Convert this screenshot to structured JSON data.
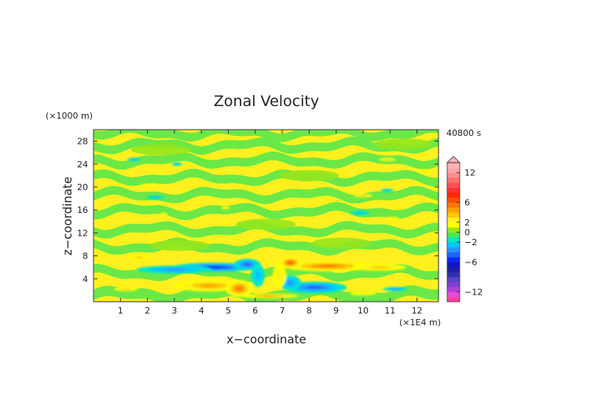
{
  "chart_data": {
    "type": "heatmap",
    "title": "Zonal Velocity",
    "xlabel": "x−coordinate",
    "ylabel": "z−coordinate",
    "x_unit": "(×1E4 m)",
    "y_unit": "(×1000 m)",
    "time_label": "40800 s",
    "xlim": [
      0,
      12.8
    ],
    "ylim": [
      0,
      30
    ],
    "x_ticks": [
      "1",
      "2",
      "3",
      "4",
      "5",
      "6",
      "7",
      "8",
      "9",
      "10",
      "11",
      "12"
    ],
    "y_ticks": [
      "4",
      "8",
      "12",
      "16",
      "20",
      "24",
      "28"
    ],
    "colorbar": {
      "labels": [
        "12",
        "6",
        "2",
        "0",
        "−2",
        "−6",
        "−12"
      ],
      "levels": [
        -14,
        -13,
        -12,
        -11,
        -10,
        -9,
        -8,
        -7,
        -6,
        -5,
        -4,
        -3,
        -2,
        -1,
        0,
        1,
        2,
        3,
        4,
        5,
        6,
        7,
        8,
        9,
        10,
        11,
        12,
        13,
        14
      ],
      "colors": [
        "#ff3fa4",
        "#e64ad9",
        "#b040d8",
        "#8040d0",
        "#6040c8",
        "#3030b0",
        "#2020a0",
        "#1414c8",
        "#0a28f0",
        "#1e64ff",
        "#2896ff",
        "#00c8ff",
        "#00e6c8",
        "#50e650",
        "#96e61e",
        "#ffff00",
        "#fff01e",
        "#ffc800",
        "#ffa000",
        "#ff7800",
        "#ff5000",
        "#ff2800",
        "#ff3232",
        "#ff5050",
        "#ff6e6e",
        "#ff8c8c",
        "#ffa5a5",
        "#ffb4b4"
      ]
    },
    "features": [
      {
        "x": 4.5,
        "z": 6.0,
        "value": -5,
        "sx": 1.6,
        "sz": 0.8
      },
      {
        "x": 3.0,
        "z": 5.6,
        "value": -3,
        "sx": 1.4,
        "sz": 0.7
      },
      {
        "x": 5.7,
        "z": 6.5,
        "value": -4,
        "sx": 0.5,
        "sz": 1.0
      },
      {
        "x": 4.3,
        "z": 2.8,
        "value": 4,
        "sx": 1.3,
        "sz": 1.0
      },
      {
        "x": 5.4,
        "z": 2.3,
        "value": 5,
        "sx": 0.5,
        "sz": 1.5
      },
      {
        "x": 8.7,
        "z": 6.2,
        "value": 5,
        "sx": 1.7,
        "sz": 0.9
      },
      {
        "x": 10.6,
        "z": 6.0,
        "value": 3,
        "sx": 1.0,
        "sz": 0.6
      },
      {
        "x": 7.3,
        "z": 6.8,
        "value": 6,
        "sx": 0.4,
        "sz": 1.0
      },
      {
        "x": 8.2,
        "z": 2.5,
        "value": -4,
        "sx": 1.2,
        "sz": 1.0
      },
      {
        "x": 7.3,
        "z": 3.3,
        "value": -3,
        "sx": 0.4,
        "sz": 1.3
      },
      {
        "x": 6.5,
        "z": 1.0,
        "value": 4,
        "sx": 1.1,
        "sz": 0.4
      },
      {
        "x": 1.7,
        "z": 7.7,
        "value": 3,
        "sx": 0.45,
        "sz": 0.45
      },
      {
        "x": 1.2,
        "z": 2.2,
        "value": 3,
        "sx": 0.45,
        "sz": 0.35
      },
      {
        "x": 11.2,
        "z": 2.2,
        "value": -3,
        "sx": 0.45,
        "sz": 0.35
      },
      {
        "x": 10.0,
        "z": 1.5,
        "value": 2,
        "sx": 0.5,
        "sz": 0.4
      },
      {
        "x": 6.1,
        "z": 4.6,
        "value": -2,
        "sx": 0.25,
        "sz": 2.0
      },
      {
        "x": 6.9,
        "z": 4.6,
        "value": 2,
        "sx": 0.25,
        "sz": 2.0
      },
      {
        "x": 1.5,
        "z": 24.8,
        "value": -3,
        "sx": 0.25,
        "sz": 0.3
      },
      {
        "x": 3.1,
        "z": 24.0,
        "value": -2,
        "sx": 0.2,
        "sz": 0.3
      },
      {
        "x": 10.9,
        "z": 24.8,
        "value": 3,
        "sx": 0.3,
        "sz": 0.3
      },
      {
        "x": 12.3,
        "z": 22.8,
        "value": 2,
        "sx": 0.25,
        "sz": 0.3
      },
      {
        "x": 2.0,
        "z": 20.2,
        "value": 2,
        "sx": 0.25,
        "sz": 0.3
      },
      {
        "x": 2.3,
        "z": 18.2,
        "value": -2,
        "sx": 0.35,
        "sz": 0.3
      },
      {
        "x": 10.0,
        "z": 18.5,
        "value": 3,
        "sx": 0.35,
        "sz": 0.3
      },
      {
        "x": 10.9,
        "z": 19.4,
        "value": -2,
        "sx": 0.25,
        "sz": 0.3
      },
      {
        "x": 9.9,
        "z": 15.5,
        "value": -2,
        "sx": 0.35,
        "sz": 0.4
      },
      {
        "x": 11.1,
        "z": 14.5,
        "value": 2,
        "sx": 0.25,
        "sz": 0.3
      },
      {
        "x": 4.9,
        "z": 16.4,
        "value": 2,
        "sx": 0.15,
        "sz": 0.3
      },
      {
        "x": 2.6,
        "z": 15.2,
        "value": 2,
        "sx": 0.15,
        "sz": 0.3
      }
    ]
  }
}
